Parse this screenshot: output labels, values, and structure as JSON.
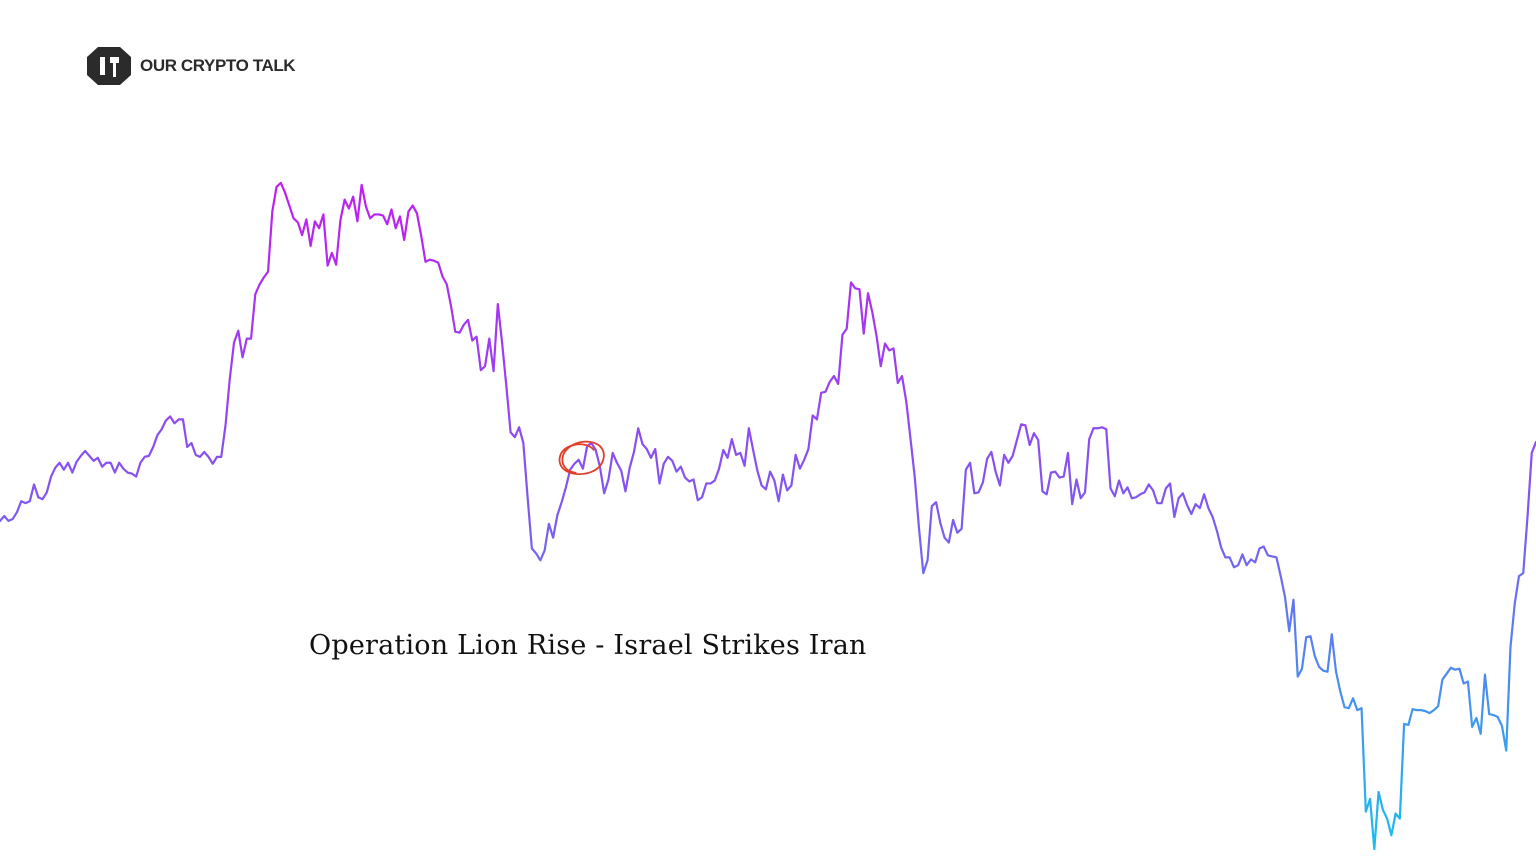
{
  "brand": {
    "name": "OUR CRYPTO TALK",
    "logo_icon": "octagon-cube-logo-icon",
    "logo_color": "#2b2b2b"
  },
  "annotation": {
    "caption": "Operation Lion Rise - Israel Strikes Iran",
    "marker_icon": "hand-drawn-circle-icon",
    "marker_color": "#e0402a",
    "marker_index": 136
  },
  "chart_data": {
    "type": "line",
    "title": "",
    "xlabel": "",
    "ylabel": "",
    "axes_visible": false,
    "grid": false,
    "legend": "none",
    "gradient": {
      "top_color": "#c21cf0",
      "middle_color": "#7d5af0",
      "bottom_color": "#17c0ee"
    },
    "ylim": [
      0,
      690
    ],
    "series": [
      {
        "values": [
          339,
          344,
          339,
          341,
          348,
          359,
          357,
          359,
          376,
          363,
          361,
          368,
          384,
          393,
          398,
          391,
          398,
          388,
          399,
          405,
          410,
          405,
          400,
          403,
          394,
          398,
          398,
          388,
          398,
          392,
          388,
          387,
          384,
          398,
          404,
          405,
          414,
          426,
          432,
          441,
          445,
          438,
          442,
          442,
          414,
          418,
          406,
          404,
          409,
          404,
          397,
          404,
          404,
          436,
          483,
          520,
          532,
          505,
          524,
          524,
          569,
          579,
          586,
          592,
          653,
          678,
          682,
          672,
          659,
          646,
          642,
          629,
          645,
          618,
          643,
          636,
          650,
          598,
          611,
          599,
          644,
          665,
          656,
          668,
          643,
          680,
          658,
          646,
          650,
          650,
          649,
          640,
          655,
          636,
          648,
          624,
          653,
          659,
          651,
          628,
          602,
          604,
          603,
          601,
          587,
          579,
          557,
          531,
          530,
          538,
          543,
          522,
          526,
          492,
          496,
          524,
          491,
          559,
          520,
          476,
          429,
          424,
          434,
          418,
          363,
          311,
          306,
          299,
          309,
          336,
          322,
          345,
          358,
          373,
          391,
          397,
          401,
          392,
          415,
          418,
          411,
          394,
          367,
          381,
          408,
          398,
          390,
          369,
          393,
          409,
          433,
          417,
          412,
          403,
          412,
          377,
          397,
          404,
          400,
          389,
          394,
          383,
          379,
          381,
          360,
          363,
          377,
          377,
          380,
          392,
          411,
          403,
          422,
          406,
          408,
          395,
          433,
          411,
          390,
          375,
          371,
          389,
          380,
          359,
          386,
          370,
          375,
          406,
          392,
          401,
          412,
          446,
          442,
          469,
          470,
          480,
          486,
          478,
          528,
          534,
          581,
          575,
          574,
          529,
          570,
          551,
          527,
          496,
          519,
          512,
          514,
          479,
          486,
          460,
          422,
          383,
          331,
          286,
          299,
          354,
          358,
          337,
          322,
          317,
          340,
          327,
          331,
          391,
          398,
          367,
          368,
          378,
          402,
          409,
          389,
          375,
          406,
          398,
          405,
          421,
          437,
          436,
          416,
          428,
          421,
          369,
          366,
          388,
          389,
          383,
          384,
          408,
          356,
          381,
          362,
          368,
          422,
          433,
          433,
          434,
          432,
          372,
          364,
          380,
          367,
          373,
          362,
          363,
          366,
          368,
          376,
          370,
          357,
          357,
          372,
          377,
          343,
          362,
          367,
          355,
          346,
          356,
          352,
          366,
          352,
          343,
          329,
          312,
          302,
          302,
          292,
          294,
          305,
          294,
          300,
          297,
          311,
          313,
          304,
          303,
          302,
          283,
          262,
          227,
          259,
          181,
          189,
          221,
          222,
          202,
          191,
          187,
          186,
          224,
          186,
          166,
          150,
          149,
          159,
          147,
          149,
          44,
          57,
          6,
          64,
          46,
          37,
          20,
          42,
          37,
          133,
          132,
          148,
          147,
          147,
          146,
          144,
          147,
          151,
          178,
          184,
          190,
          188,
          189,
          174,
          176,
          130,
          139,
          123,
          183,
          143,
          142,
          140,
          131,
          106,
          211,
          255,
          283,
          286,
          343,
          408,
          419
        ]
      }
    ]
  }
}
